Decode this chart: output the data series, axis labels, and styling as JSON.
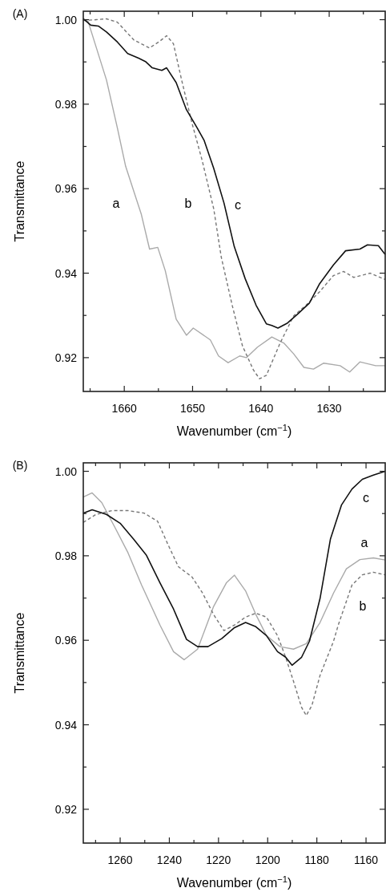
{
  "chart_data": [
    {
      "type": "line",
      "title": "(A)",
      "xlabel": "Wavenumber (cm$^{−1}$)",
      "ylabel": "Transmittance",
      "xlim": [
        1666,
        1621.8
      ],
      "ylim": [
        0.912,
        1.002
      ],
      "xticks": [
        {
          "value": 1665,
          "label": null
        },
        1660,
        {
          "value": 1655,
          "label": null
        },
        1650,
        {
          "value": 1645,
          "label": null
        },
        1640,
        {
          "value": 1635,
          "label": null
        },
        1630,
        {
          "value": 1625,
          "label": null
        }
      ],
      "yticks": [
        0.92,
        {
          "value": 0.93,
          "label": null
        },
        0.94,
        {
          "value": 0.95,
          "label": null
        },
        0.96,
        {
          "value": 0.97,
          "label": null
        },
        0.98,
        {
          "value": 0.99,
          "label": null
        },
        {
          "value": 1,
          "label": "1.00"
        }
      ],
      "series": [
        {
          "name": "a",
          "color": "#aaaaaa",
          "x": [
            1666,
            1665.3,
            1662.6,
            1661,
            1659.8,
            1657.5,
            1656.3,
            1655.1,
            1654,
            1652.4,
            1650.9,
            1649.9,
            1647.4,
            1646.2,
            1644.8,
            1643.1,
            1642.1,
            1640.5,
            1638.4,
            1636.6,
            1635.2,
            1633.7,
            1632.3,
            1630.8,
            1628.4,
            1627,
            1625.5,
            1623.2,
            1621.8
          ],
          "values": [
            1.0,
            0.9996,
            0.9857,
            0.9743,
            0.9653,
            0.9539,
            0.9457,
            0.9461,
            0.9406,
            0.9291,
            0.9253,
            0.927,
            0.9242,
            0.9204,
            0.9188,
            0.9204,
            0.92,
            0.9225,
            0.9249,
            0.9234,
            0.9209,
            0.9177,
            0.9173,
            0.9187,
            0.9181,
            0.9166,
            0.919,
            0.9181,
            0.9181
          ]
        },
        {
          "name": "b",
          "color": "#777777",
          "line_style": "dashed",
          "x": [
            1666,
            1664.1,
            1662.6,
            1661,
            1658.6,
            1656.3,
            1654.8,
            1653.8,
            1652.8,
            1651.6,
            1650.1,
            1648.6,
            1646.9,
            1645.8,
            1644.2,
            1642.7,
            1641.1,
            1640.2,
            1639.2,
            1637.2,
            1635.2,
            1633.4,
            1631.4,
            1629.4,
            1627.9,
            1626.4,
            1624,
            1621.8
          ],
          "values": [
            0.9998,
            1.0,
            1.0002,
            0.9994,
            0.9952,
            0.9933,
            0.9949,
            0.9962,
            0.9943,
            0.9857,
            0.9756,
            0.9667,
            0.9552,
            0.9438,
            0.9324,
            0.9228,
            0.9171,
            0.915,
            0.9158,
            0.9234,
            0.9299,
            0.9324,
            0.9356,
            0.9394,
            0.9404,
            0.939,
            0.94,
            0.9385
          ]
        },
        {
          "name": "c",
          "color": "#111111",
          "x": [
            1666,
            1664.9,
            1663.8,
            1662.6,
            1661,
            1659.5,
            1657.9,
            1656.9,
            1655.9,
            1654.5,
            1653.8,
            1652.4,
            1650.9,
            1649.3,
            1648.3,
            1646.9,
            1645.4,
            1643.9,
            1642.3,
            1640.7,
            1639.2,
            1638.4,
            1637.5,
            1636.1,
            1634.5,
            1632.9,
            1631.4,
            1629.4,
            1627.6,
            1625.5,
            1624.4,
            1622.8,
            1621.8
          ],
          "values": [
            1.0002,
            0.9987,
            0.9985,
            0.9971,
            0.9947,
            0.992,
            0.9909,
            0.9901,
            0.9886,
            0.988,
            0.9886,
            0.9851,
            0.9787,
            0.9743,
            0.9714,
            0.9648,
            0.9566,
            0.9463,
            0.9387,
            0.9324,
            0.928,
            0.9276,
            0.927,
            0.9282,
            0.9305,
            0.9329,
            0.9375,
            0.9419,
            0.9453,
            0.9457,
            0.9467,
            0.9465,
            0.9444
          ]
        }
      ]
    },
    {
      "type": "line",
      "title": "(B)",
      "xlabel": "Wavenumber (cm$^{−1}$)",
      "ylabel": "Transmittance",
      "xlim": [
        1275,
        1152.2
      ],
      "ylim": [
        0.912,
        1.002
      ],
      "xticks": [
        {
          "value": 1270,
          "label": null
        },
        1260,
        {
          "value": 1250,
          "label": null
        },
        1240,
        {
          "value": 1230,
          "label": null
        },
        1220,
        {
          "value": 1210,
          "label": null
        },
        1200,
        {
          "value": 1190,
          "label": null
        },
        1180,
        {
          "value": 1170,
          "label": null
        },
        1160
      ],
      "yticks": [
        0.92,
        {
          "value": 0.93,
          "label": null
        },
        0.94,
        {
          "value": 0.95,
          "label": null
        },
        0.96,
        {
          "value": 0.97,
          "label": null
        },
        0.98,
        {
          "value": 0.99,
          "label": null
        },
        {
          "value": 1,
          "label": "1.00"
        }
      ],
      "series": [
        {
          "name": "a",
          "color": "#aaaaaa",
          "x": [
            1275,
            1271.4,
            1267.5,
            1262.3,
            1256.8,
            1251.3,
            1243.8,
            1238.3,
            1234,
            1228.5,
            1222,
            1216.8,
            1213.5,
            1209,
            1204.8,
            1200.5,
            1195,
            1189.5,
            1184.3,
            1178.7,
            1173.2,
            1168,
            1162.5,
            1157,
            1152.2
          ],
          "values": [
            0.9939,
            0.9949,
            0.9926,
            0.9869,
            0.9807,
            0.9731,
            0.9636,
            0.9573,
            0.9554,
            0.9579,
            0.968,
            0.9736,
            0.9754,
            0.9717,
            0.9661,
            0.9611,
            0.9585,
            0.9579,
            0.9592,
            0.9642,
            0.9712,
            0.9769,
            0.9791,
            0.9795,
            0.979
          ]
        },
        {
          "name": "b",
          "color": "#777777",
          "line_style": "dashed",
          "x": [
            1275,
            1269.8,
            1263.3,
            1256.8,
            1250.3,
            1244.8,
            1240.5,
            1236.3,
            1230.8,
            1226.5,
            1222,
            1217.8,
            1213.5,
            1209,
            1204.8,
            1200.5,
            1196,
            1192.7,
            1189.5,
            1186.2,
            1184.3,
            1182,
            1178.7,
            1173.2,
            1171.3,
            1165.7,
            1161.5,
            1157,
            1152.2
          ],
          "values": [
            0.9879,
            0.9898,
            0.9907,
            0.9907,
            0.9901,
            0.9882,
            0.9826,
            0.9774,
            0.975,
            0.9712,
            0.9661,
            0.9623,
            0.9636,
            0.9655,
            0.9664,
            0.9655,
            0.9611,
            0.956,
            0.9503,
            0.9441,
            0.9422,
            0.9446,
            0.9517,
            0.9598,
            0.9636,
            0.9731,
            0.9755,
            0.9761,
            0.9755
          ]
        },
        {
          "name": "c",
          "color": "#111111",
          "x": [
            1275,
            1271.4,
            1265.6,
            1260,
            1254.5,
            1249.3,
            1243.8,
            1238.3,
            1233,
            1228.5,
            1224.3,
            1218.7,
            1213.5,
            1209,
            1204.8,
            1200.5,
            1196,
            1192.7,
            1190.1,
            1186.2,
            1183,
            1178.7,
            1174.5,
            1170,
            1165.7,
            1161.5,
            1157,
            1152.2
          ],
          "values": [
            0.9901,
            0.9909,
            0.9898,
            0.9877,
            0.9839,
            0.9801,
            0.9736,
            0.9674,
            0.9602,
            0.9585,
            0.9585,
            0.9604,
            0.963,
            0.9642,
            0.9632,
            0.9611,
            0.9573,
            0.956,
            0.9541,
            0.956,
            0.9598,
            0.9699,
            0.9839,
            0.992,
            0.9958,
            0.9981,
            0.9991,
            1.0
          ]
        }
      ]
    }
  ]
}
